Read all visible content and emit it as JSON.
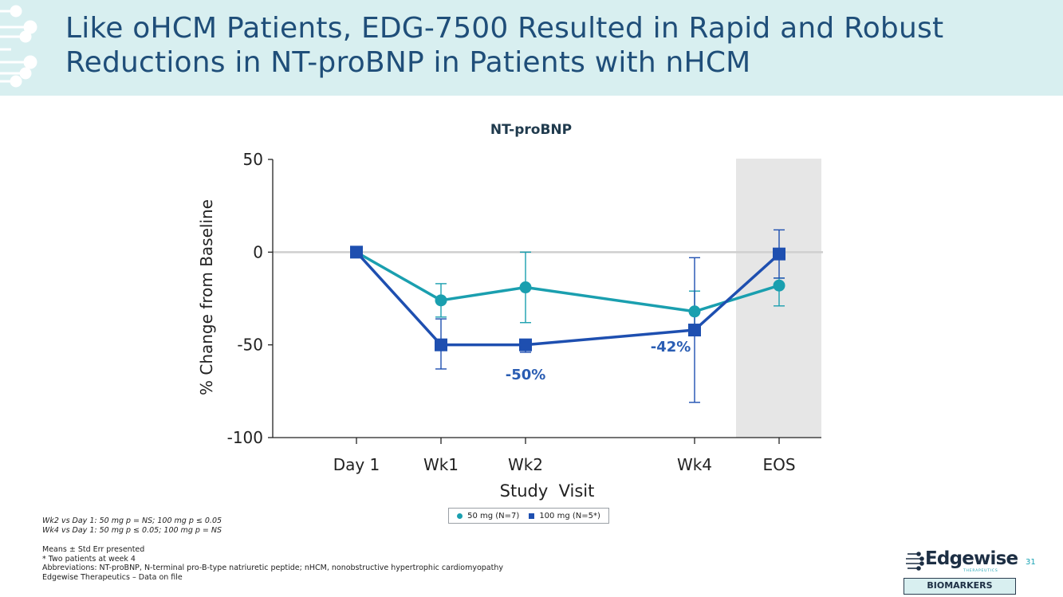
{
  "header": {
    "title_line1": "Like oHCM Patients, EDG-7500 Resulted in Rapid and Robust",
    "title_line2": "Reductions in NT-proBNP in Patients with nHCM"
  },
  "chart_data": {
    "type": "line",
    "title": "NT-proBNP",
    "xlabel": "Study  Visit",
    "ylabel": "% Change from Baseline",
    "ylim": [
      -100,
      50
    ],
    "yticks": [
      50,
      0,
      -50,
      -100
    ],
    "ytick_labels": [
      "50",
      "0",
      "-50",
      "-100"
    ],
    "categories": [
      "Day 1",
      "Wk1",
      "Wk2",
      "Wk4",
      "EOS"
    ],
    "x_weeks": [
      0,
      1,
      2,
      4,
      5
    ],
    "shaded_region": "EOS",
    "series": [
      {
        "name": "50 mg (N=7)",
        "marker": "circle",
        "color": "#1a9faf",
        "values": [
          0,
          -26,
          -19,
          -32,
          -18
        ],
        "err_low": [
          0,
          -35,
          -38,
          -42,
          -29
        ],
        "err_high": [
          0,
          -17,
          0,
          -21,
          -14
        ]
      },
      {
        "name": "100 mg (N=5*)",
        "marker": "square",
        "color": "#1e4fb0",
        "values": [
          0,
          -50,
          -50,
          -42,
          -1
        ],
        "err_low": [
          0,
          -63,
          -54,
          -81,
          -14
        ],
        "err_high": [
          0,
          -36,
          -47,
          -3,
          12
        ]
      }
    ],
    "annotations": [
      {
        "text": "-50%",
        "x_category": "Wk2",
        "y": -66
      },
      {
        "text": "-42%",
        "x_category": "Wk4",
        "y": -51
      }
    ]
  },
  "legend": {
    "item1": "50 mg (N=7)",
    "item2": "100 mg (N=5*)"
  },
  "stats": {
    "line1": "Wk2 vs Day 1: 50 mg p = NS; 100 mg p ≤ 0.05",
    "line2": "Wk4 vs Day 1: 50 mg p ≤ 0.05; 100 mg p = NS"
  },
  "footnotes": {
    "line1": "Means ± Std Err presented",
    "line2": "* Two patients at week 4",
    "line3": "Abbreviations: NT-proBNP, N-terminal pro-B-type natriuretic peptide; nHCM, nonobstructive hypertrophic cardiomyopathy",
    "line4": "Edgewise Therapeutics – Data on file"
  },
  "logo": {
    "name": "Edgewise",
    "sub": "THERAPEUTICS"
  },
  "page_number": "31",
  "badge": "BIOMARKERS"
}
